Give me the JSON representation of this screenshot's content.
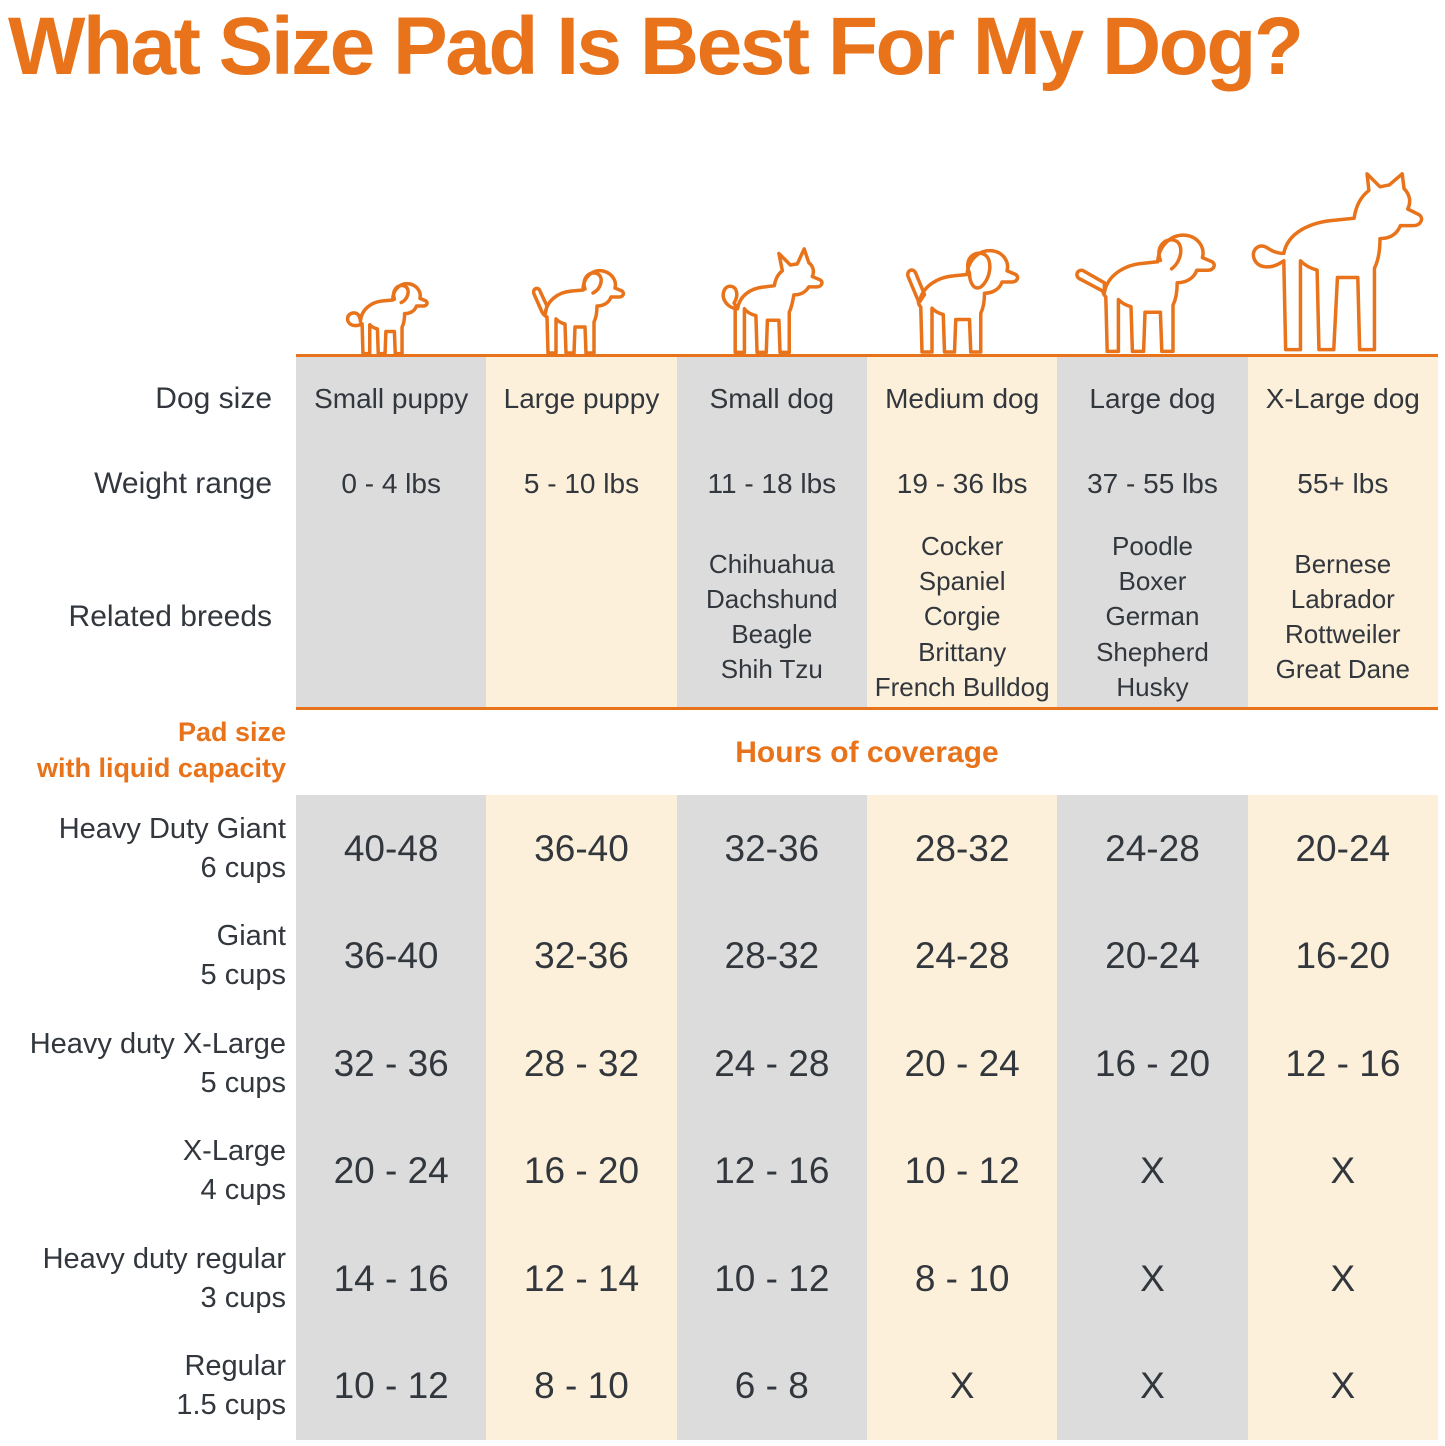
{
  "title": "What Size Pad Is Best For My Dog?",
  "colors": {
    "accent": "#E8731A",
    "gray_column": "#DCDCDC",
    "cream_column": "#FCF0DA",
    "text": "#32373D"
  },
  "labels": {
    "dog_size": "Dog size",
    "weight_range": "Weight range",
    "related_breeds": "Related breeds",
    "pad_size_line1": "Pad size",
    "pad_size_line2": "with liquid capacity",
    "hours_of_coverage": "Hours of coverage"
  },
  "chart_data": {
    "type": "table",
    "columns": [
      {
        "dog_size": "Small puppy",
        "weight_range": "0 - 4 lbs",
        "related_breeds": [],
        "shade": "gray",
        "icon": "small-puppy-icon"
      },
      {
        "dog_size": "Large puppy",
        "weight_range": "5 - 10 lbs",
        "related_breeds": [],
        "shade": "cream",
        "icon": "large-puppy-icon"
      },
      {
        "dog_size": "Small dog",
        "weight_range": "11 - 18 lbs",
        "related_breeds": [
          "Chihuahua",
          "Dachshund",
          "Beagle",
          "Shih Tzu"
        ],
        "shade": "gray",
        "icon": "small-dog-icon"
      },
      {
        "dog_size": "Medium dog",
        "weight_range": "19 - 36 lbs",
        "related_breeds": [
          "Cocker Spaniel",
          "Corgie",
          "Brittany",
          "French Bulldog"
        ],
        "shade": "cream",
        "icon": "medium-dog-icon"
      },
      {
        "dog_size": "Large dog",
        "weight_range": "37 - 55 lbs",
        "related_breeds": [
          "Poodle",
          "Boxer",
          "German Shepherd",
          "Husky"
        ],
        "shade": "gray",
        "icon": "large-dog-icon"
      },
      {
        "dog_size": "X-Large dog",
        "weight_range": "55+ lbs",
        "related_breeds": [
          "Bernese",
          "Labrador",
          "Rottweiler",
          "Great Dane"
        ],
        "shade": "cream",
        "icon": "x-large-dog-icon"
      }
    ],
    "pad_rows": [
      {
        "pad": "Heavy Duty Giant",
        "capacity": "6 cups",
        "hours": [
          "40-48",
          "36-40",
          "32-36",
          "28-32",
          "24-28",
          "20-24"
        ]
      },
      {
        "pad": "Giant",
        "capacity": "5 cups",
        "hours": [
          "36-40",
          "32-36",
          "28-32",
          "24-28",
          "20-24",
          "16-20"
        ]
      },
      {
        "pad": "Heavy duty X-Large",
        "capacity": "5 cups",
        "hours": [
          "32 - 36",
          "28 - 32",
          "24 - 28",
          "20 - 24",
          "16 - 20",
          "12 - 16"
        ]
      },
      {
        "pad": "X-Large",
        "capacity": "4 cups",
        "hours": [
          "20 - 24",
          "16 - 20",
          "12 - 16",
          "10 - 12",
          "X",
          "X"
        ]
      },
      {
        "pad": "Heavy duty regular",
        "capacity": "3 cups",
        "hours": [
          "14 - 16",
          "12 - 14",
          "10 - 12",
          "8 - 10",
          "X",
          "X"
        ]
      },
      {
        "pad": "Regular",
        "capacity": "1.5 cups",
        "hours": [
          "10 - 12",
          "8 - 10",
          "6 - 8",
          "X",
          "X",
          "X"
        ]
      }
    ]
  }
}
